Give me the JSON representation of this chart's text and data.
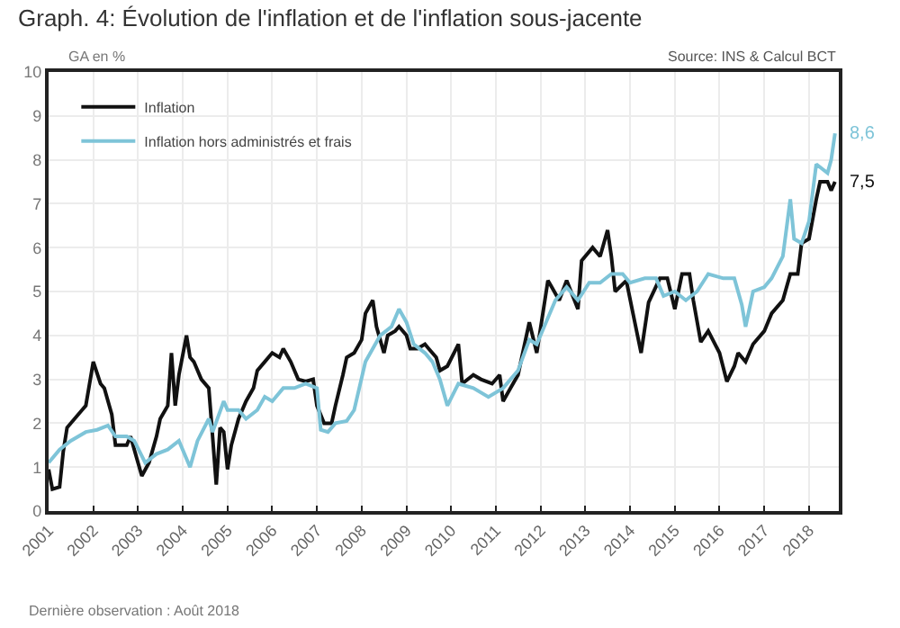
{
  "chart_data": {
    "type": "line",
    "title": "Graph. 4: Évolution de l'inflation et de l'inflation sous-jacente",
    "ylabel": "GA en %",
    "annotations": [
      "Source: INS & Calcul BCT",
      "Dernière observation : Août 2018",
      {
        "text": "8,6",
        "x": "2018-08",
        "y": 8.6
      },
      {
        "text": "7,5",
        "x": "2018-08",
        "y": 7.5
      }
    ],
    "xlim": [
      "2001-01",
      "2018-09"
    ],
    "xticks": [
      {
        "value": "2001-01",
        "label": "2001"
      },
      {
        "value": "2002-01",
        "label": "2002"
      },
      {
        "value": "2003-01",
        "label": "2003"
      },
      {
        "value": "2004-01",
        "label": "2004"
      },
      {
        "value": "2005-01",
        "label": "2005"
      },
      {
        "value": "2006-01",
        "label": "2006"
      },
      {
        "value": "2007-01",
        "label": "2007"
      },
      {
        "value": "2008-01",
        "label": "2008"
      },
      {
        "value": "2009-01",
        "label": "2009"
      },
      {
        "value": "2010-01",
        "label": "2010"
      },
      {
        "value": "2011-01",
        "label": "2011"
      },
      {
        "value": "2012-01",
        "label": "2012"
      },
      {
        "value": "2013-01",
        "label": "2013"
      },
      {
        "value": "2014-01",
        "label": "2014"
      },
      {
        "value": "2015-01",
        "label": "2015"
      },
      {
        "value": "2016-01",
        "label": "2016"
      },
      {
        "value": "2017-01",
        "label": "2017"
      },
      {
        "value": "2018-01",
        "label": "2018"
      }
    ],
    "ylim": [
      0,
      10
    ],
    "yticks": [
      0,
      1,
      2,
      3,
      4,
      5,
      6,
      7,
      8,
      9,
      10
    ],
    "grid": true,
    "legend": "top left",
    "marker": "none",
    "line_style": "solid",
    "series": [
      {
        "name": "Inflation",
        "color": "#111111",
        "x": [
          "2001-01",
          "2001-02",
          "2001-04",
          "2001-05",
          "2001-06",
          "2001-08",
          "2001-10",
          "2001-11",
          "2002-01",
          "2002-03",
          "2002-04",
          "2002-06",
          "2002-07",
          "2002-10",
          "2002-11",
          "2003-01",
          "2003-02",
          "2003-04",
          "2003-06",
          "2003-07",
          "2003-09",
          "2003-10",
          "2003-11",
          "2003-12",
          "2004-02",
          "2004-03",
          "2004-04",
          "2004-06",
          "2004-08",
          "2004-09",
          "2004-10",
          "2004-11",
          "2004-12",
          "2005-01",
          "2005-02",
          "2005-04",
          "2005-06",
          "2005-08",
          "2005-09",
          "2005-11",
          "2006-01",
          "2006-03",
          "2006-04",
          "2006-06",
          "2006-08",
          "2006-10",
          "2006-12",
          "2007-01",
          "2007-03",
          "2007-05",
          "2007-06",
          "2007-08",
          "2007-09",
          "2007-11",
          "2008-01",
          "2008-02",
          "2008-04",
          "2008-05",
          "2008-07",
          "2008-08",
          "2008-10",
          "2008-11",
          "2009-01",
          "2009-02",
          "2009-04",
          "2009-06",
          "2009-07",
          "2009-09",
          "2009-10",
          "2009-12",
          "2010-03",
          "2010-04",
          "2010-07",
          "2010-09",
          "2010-12",
          "2011-02",
          "2011-03",
          "2011-05",
          "2011-07",
          "2011-10",
          "2011-12",
          "2012-03",
          "2012-04",
          "2012-06",
          "2012-08",
          "2012-11",
          "2012-12",
          "2013-03",
          "2013-05",
          "2013-07",
          "2013-08",
          "2013-09",
          "2013-12",
          "2014-02",
          "2014-04",
          "2014-06",
          "2014-09",
          "2014-11",
          "2015-01",
          "2015-03",
          "2015-05",
          "2015-06",
          "2015-08",
          "2015-10",
          "2016-01",
          "2016-03",
          "2016-05",
          "2016-06",
          "2016-08",
          "2016-10",
          "2017-01",
          "2017-03",
          "2017-06",
          "2017-08",
          "2017-10",
          "2017-11",
          "2018-01",
          "2018-03",
          "2018-04",
          "2018-06",
          "2018-07",
          "2018-08"
        ],
        "values": [
          0.95,
          0.5,
          0.55,
          1.36,
          1.9,
          2.1,
          2.3,
          2.4,
          3.4,
          2.9,
          2.8,
          2.2,
          1.5,
          1.5,
          1.7,
          1.1,
          0.8,
          1.1,
          1.7,
          2.1,
          2.4,
          3.6,
          2.4,
          3.1,
          4.0,
          3.5,
          3.4,
          3.0,
          2.8,
          1.7,
          0.6,
          1.9,
          1.8,
          0.95,
          1.5,
          2.1,
          2.5,
          2.8,
          3.2,
          3.4,
          3.6,
          3.5,
          3.7,
          3.4,
          3.0,
          2.95,
          3.0,
          2.4,
          2.0,
          2.0,
          2.4,
          3.1,
          3.5,
          3.6,
          3.9,
          4.5,
          4.8,
          4.2,
          3.6,
          4.0,
          4.1,
          4.2,
          4.0,
          3.7,
          3.7,
          3.8,
          3.7,
          3.5,
          3.2,
          3.3,
          3.8,
          2.9,
          3.1,
          3.0,
          2.9,
          3.1,
          2.5,
          2.8,
          3.1,
          4.3,
          3.6,
          5.25,
          5.1,
          4.8,
          5.25,
          4.6,
          5.7,
          6.0,
          5.8,
          6.4,
          5.8,
          5.0,
          5.25,
          4.4,
          3.6,
          4.75,
          5.3,
          5.3,
          4.6,
          5.4,
          5.4,
          4.8,
          3.85,
          4.1,
          3.6,
          2.95,
          3.3,
          3.6,
          3.4,
          3.8,
          4.1,
          4.5,
          4.8,
          5.4,
          5.4,
          6.1,
          6.2,
          7.1,
          7.5,
          7.5,
          7.3,
          7.5
        ]
      },
      {
        "name": "Inflation hors administrés et frais",
        "color": "#7ec4d8",
        "x": [
          "2001-01",
          "2001-04",
          "2001-07",
          "2001-11",
          "2002-02",
          "2002-05",
          "2002-07",
          "2002-10",
          "2002-12",
          "2003-03",
          "2003-06",
          "2003-09",
          "2003-12",
          "2004-03",
          "2004-05",
          "2004-08",
          "2004-09",
          "2004-12",
          "2005-01",
          "2005-04",
          "2005-06",
          "2005-09",
          "2005-11",
          "2006-01",
          "2006-04",
          "2006-07",
          "2006-10",
          "2007-01",
          "2007-02",
          "2007-04",
          "2007-06",
          "2007-09",
          "2007-11",
          "2008-02",
          "2008-04",
          "2008-06",
          "2008-09",
          "2008-11",
          "2009-01",
          "2009-03",
          "2009-06",
          "2009-08",
          "2009-10",
          "2009-12",
          "2010-03",
          "2010-07",
          "2010-11",
          "2011-03",
          "2011-07",
          "2011-10",
          "2011-12",
          "2012-03",
          "2012-05",
          "2012-08",
          "2012-11",
          "2013-02",
          "2013-05",
          "2013-08",
          "2013-11",
          "2014-01",
          "2014-05",
          "2014-08",
          "2014-10",
          "2015-01",
          "2015-04",
          "2015-07",
          "2015-10",
          "2016-02",
          "2016-05",
          "2016-07",
          "2016-08",
          "2016-10",
          "2017-01",
          "2017-03",
          "2017-06",
          "2017-08",
          "2017-09",
          "2017-11",
          "2018-01",
          "2018-03",
          "2018-06",
          "2018-07",
          "2018-08"
        ],
        "values": [
          1.1,
          1.4,
          1.6,
          1.8,
          1.85,
          1.95,
          1.7,
          1.7,
          1.6,
          1.1,
          1.3,
          1.4,
          1.6,
          1.0,
          1.6,
          2.1,
          1.8,
          2.5,
          2.3,
          2.3,
          2.1,
          2.3,
          2.6,
          2.5,
          2.8,
          2.8,
          2.9,
          2.8,
          1.85,
          1.8,
          2.0,
          2.05,
          2.3,
          3.4,
          3.7,
          4.0,
          4.2,
          4.6,
          4.3,
          3.8,
          3.6,
          3.4,
          3.0,
          2.4,
          2.9,
          2.8,
          2.6,
          2.8,
          3.2,
          3.9,
          3.8,
          4.4,
          4.8,
          5.1,
          4.8,
          5.2,
          5.2,
          5.4,
          5.4,
          5.2,
          5.3,
          5.3,
          4.9,
          5.0,
          4.8,
          5.0,
          5.4,
          5.3,
          5.3,
          4.7,
          4.2,
          5.0,
          5.1,
          5.3,
          5.8,
          7.1,
          6.2,
          6.1,
          6.6,
          7.9,
          7.7,
          8.0,
          8.6
        ]
      }
    ]
  }
}
